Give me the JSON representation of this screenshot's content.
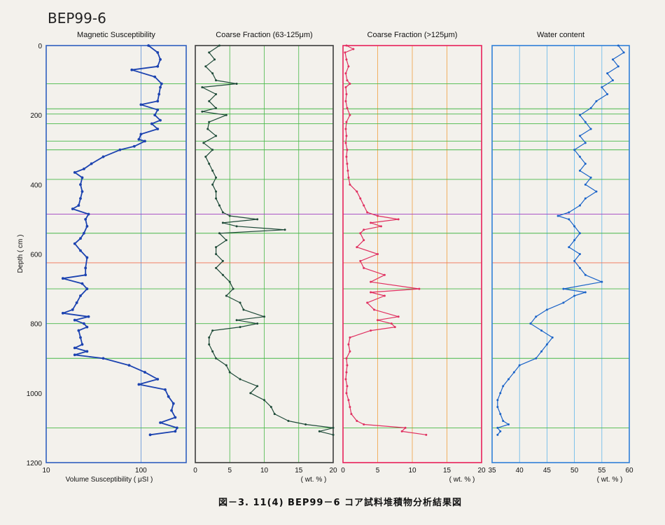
{
  "page": {
    "title": "BEP99-6",
    "caption": "図－3. 11(4) BEP99－6 コア試料堆積物分析結果図"
  },
  "chart_data": {
    "type": "line",
    "depth_axis": {
      "label": "Depth ( cm )",
      "range": [
        0,
        1200
      ],
      "ticks": [
        0,
        200,
        400,
        600,
        800,
        1000,
        1200
      ]
    },
    "reference_lines": [
      {
        "depth": 110,
        "color": "#48b848"
      },
      {
        "depth": 182,
        "color": "#48b848"
      },
      {
        "depth": 197,
        "color": "#48b848"
      },
      {
        "depth": 225,
        "color": "#48b848"
      },
      {
        "depth": 275,
        "color": "#48b848"
      },
      {
        "depth": 300,
        "color": "#48b848"
      },
      {
        "depth": 385,
        "color": "#48b848"
      },
      {
        "depth": 485,
        "color": "#a040c0"
      },
      {
        "depth": 540,
        "color": "#48b848"
      },
      {
        "depth": 625,
        "color": "#f07050"
      },
      {
        "depth": 700,
        "color": "#48b848"
      },
      {
        "depth": 800,
        "color": "#48b848"
      },
      {
        "depth": 900,
        "color": "#48b848"
      },
      {
        "depth": 1100,
        "color": "#48b848"
      }
    ],
    "panels": [
      {
        "title": "Magnetic Susceptibility",
        "xlabel": "Volume Susceptibility ( μSI )",
        "scale": "log",
        "xlim": [
          10,
          300
        ],
        "ticks": [
          10,
          100
        ],
        "frame_color": "#3060c0",
        "grid_color": "#5b8fd8",
        "line_color": "#1c43b0",
        "series": {
          "name": "",
          "depth": [
            0,
            20,
            40,
            60,
            70,
            90,
            110,
            120,
            140,
            160,
            170,
            185,
            200,
            215,
            225,
            240,
            255,
            270,
            275,
            290,
            300,
            320,
            340,
            355,
            365,
            380,
            400,
            420,
            440,
            460,
            470,
            485,
            500,
            520,
            540,
            555,
            570,
            590,
            610,
            640,
            660,
            670,
            685,
            700,
            720,
            740,
            760,
            770,
            780,
            790,
            800,
            810,
            820,
            840,
            860,
            870,
            880,
            890,
            900,
            920,
            940,
            960,
            975,
            990,
            1010,
            1030,
            1050,
            1070,
            1085,
            1100,
            1110,
            1120
          ],
          "values": [
            120,
            150,
            160,
            150,
            80,
            140,
            165,
            160,
            155,
            150,
            100,
            150,
            140,
            160,
            130,
            150,
            100,
            95,
            110,
            85,
            60,
            40,
            30,
            25,
            20,
            24,
            23,
            24,
            23,
            22,
            19,
            28,
            26,
            27,
            25,
            23,
            20,
            23,
            27,
            26,
            26,
            15,
            24,
            27,
            23,
            21,
            19,
            15,
            28,
            20,
            25,
            27,
            22,
            23,
            24,
            20,
            27,
            20,
            40,
            75,
            110,
            150,
            95,
            180,
            195,
            220,
            210,
            230,
            160,
            240,
            230,
            125
          ]
        }
      },
      {
        "title": "Coarse Fraction (63-125μm)",
        "xlabel": "( wt. % )",
        "scale": "linear",
        "xlim": [
          0,
          20
        ],
        "ticks": [
          0,
          5,
          10,
          15,
          20
        ],
        "frame_color": "#3c3c3c",
        "grid_color": "#48b848",
        "line_color": "#1e4a38",
        "series": {
          "name": "",
          "depth": [
            0,
            20,
            40,
            60,
            80,
            100,
            110,
            120,
            140,
            160,
            180,
            190,
            200,
            220,
            240,
            260,
            280,
            300,
            320,
            340,
            360,
            380,
            400,
            420,
            440,
            460,
            480,
            490,
            500,
            510,
            520,
            530,
            540,
            560,
            580,
            600,
            620,
            640,
            660,
            680,
            700,
            720,
            740,
            760,
            780,
            790,
            800,
            810,
            820,
            840,
            860,
            880,
            900,
            920,
            940,
            960,
            980,
            1000,
            1020,
            1040,
            1060,
            1080,
            1090,
            1100,
            1110,
            1120
          ],
          "values": [
            3.5,
            2.0,
            2.8,
            1.5,
            2.5,
            3.0,
            6.0,
            1.0,
            3.0,
            2.0,
            3.0,
            1.0,
            4.5,
            2.0,
            1.8,
            3.0,
            1.2,
            2.5,
            1.5,
            2.0,
            2.5,
            3.0,
            2.5,
            3.0,
            3.0,
            3.5,
            4.0,
            5.0,
            9.0,
            4.0,
            6.0,
            13.0,
            3.5,
            4.5,
            3.0,
            3.0,
            4.0,
            3.0,
            4.0,
            5.0,
            5.5,
            4.5,
            6.5,
            7.0,
            10.0,
            6.0,
            9.0,
            6.5,
            2.5,
            2.0,
            2.0,
            2.5,
            3.0,
            4.5,
            5.0,
            6.5,
            9.0,
            8.0,
            10.0,
            11.0,
            11.5,
            13.5,
            16.0,
            20.0,
            18.0,
            20.0
          ]
        }
      },
      {
        "title": "Coarse Fraction (>125μm)",
        "xlabel": "( wt. % )",
        "scale": "linear",
        "xlim": [
          0,
          20
        ],
        "ticks": [
          0,
          5,
          10,
          15,
          20
        ],
        "frame_color": "#e8205a",
        "grid_color": "#f0a040",
        "line_color": "#e03060",
        "series": {
          "name": "",
          "depth": [
            0,
            10,
            20,
            40,
            60,
            80,
            100,
            110,
            120,
            140,
            160,
            180,
            200,
            220,
            240,
            260,
            280,
            300,
            320,
            340,
            360,
            380,
            400,
            420,
            440,
            460,
            480,
            490,
            500,
            510,
            520,
            530,
            540,
            560,
            580,
            600,
            620,
            640,
            660,
            680,
            700,
            710,
            720,
            740,
            760,
            780,
            790,
            800,
            810,
            820,
            840,
            860,
            880,
            900,
            920,
            940,
            960,
            980,
            1000,
            1020,
            1040,
            1060,
            1080,
            1090,
            1100,
            1110,
            1120
          ],
          "values": [
            0.5,
            1.5,
            0.3,
            0.5,
            0.8,
            0.4,
            0.6,
            1.0,
            0.4,
            0.5,
            0.4,
            0.6,
            1.0,
            0.5,
            0.4,
            0.5,
            0.4,
            0.6,
            0.5,
            0.6,
            0.7,
            0.8,
            1.0,
            2.0,
            2.5,
            3.0,
            3.5,
            5.0,
            8.0,
            4.0,
            5.5,
            3.0,
            2.5,
            3.0,
            2.0,
            5.0,
            2.5,
            3.0,
            6.0,
            4.0,
            11.0,
            4.0,
            6.0,
            3.5,
            4.5,
            8.0,
            5.0,
            7.0,
            7.5,
            4.0,
            1.0,
            0.8,
            1.0,
            0.5,
            0.6,
            0.5,
            0.4,
            0.6,
            0.5,
            0.8,
            1.0,
            1.2,
            2.0,
            3.0,
            9.0,
            8.5,
            12.0
          ]
        }
      },
      {
        "title": "Water content",
        "xlabel": "( wt. % )",
        "scale": "linear",
        "xlim": [
          35,
          60
        ],
        "ticks": [
          35,
          40,
          45,
          50,
          55,
          60
        ],
        "frame_color": "#3080d8",
        "grid_color": "#62b6ea",
        "line_color": "#1a63c8",
        "series": {
          "name": "",
          "depth": [
            0,
            20,
            40,
            60,
            80,
            100,
            120,
            140,
            160,
            180,
            200,
            220,
            240,
            260,
            280,
            300,
            320,
            340,
            360,
            380,
            400,
            420,
            440,
            460,
            480,
            490,
            500,
            520,
            540,
            560,
            580,
            600,
            620,
            640,
            660,
            680,
            700,
            710,
            720,
            740,
            760,
            780,
            800,
            820,
            840,
            860,
            880,
            900,
            920,
            940,
            960,
            980,
            1000,
            1020,
            1040,
            1060,
            1080,
            1090,
            1100,
            1110,
            1120
          ],
          "values": [
            58,
            59,
            57,
            58,
            56,
            57,
            55,
            56,
            54,
            53,
            51,
            52,
            53,
            51,
            52,
            50,
            51,
            52,
            51,
            53,
            52,
            54,
            52,
            51,
            49,
            47,
            49,
            50,
            51,
            50,
            49,
            51,
            50,
            51,
            52,
            55,
            48,
            52,
            50,
            48,
            45,
            43,
            42,
            44,
            46,
            45,
            44,
            43,
            40,
            39,
            38,
            37,
            36.5,
            36,
            36,
            36.5,
            37,
            38,
            36,
            36.5,
            36
          ]
        }
      }
    ]
  }
}
